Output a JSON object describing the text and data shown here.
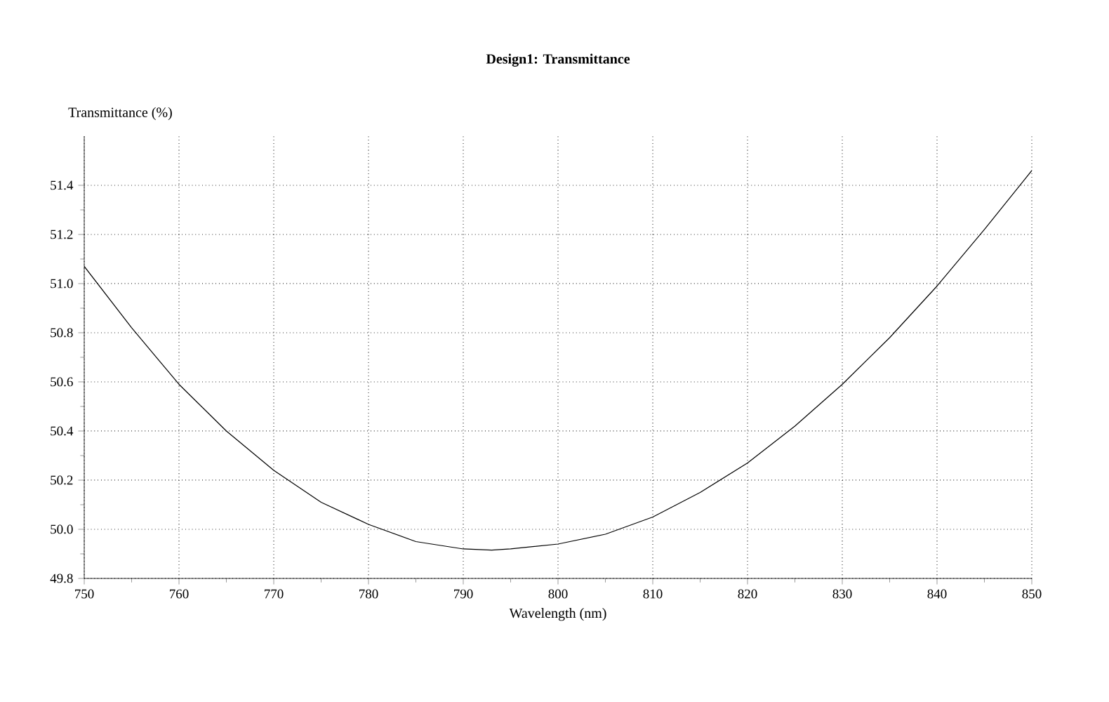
{
  "chart_data": {
    "type": "line",
    "title": "Design1: Transmittance",
    "xlabel": "Wavelength (nm)",
    "ylabel": "Transmittance (%)",
    "x": [
      750,
      755,
      760,
      765,
      770,
      775,
      780,
      785,
      790,
      793,
      795,
      800,
      805,
      810,
      815,
      820,
      825,
      830,
      835,
      840,
      845,
      850
    ],
    "series": [
      {
        "color": "#000000",
        "values": [
          51.07,
          50.82,
          50.59,
          50.4,
          50.24,
          50.11,
          50.02,
          49.95,
          49.92,
          49.915,
          49.92,
          49.94,
          49.98,
          50.05,
          50.15,
          50.27,
          50.42,
          50.59,
          50.78,
          50.99,
          51.22,
          51.46
        ]
      }
    ],
    "xlim": [
      750,
      850
    ],
    "ylim": [
      49.8,
      51.6
    ],
    "xticks": [
      750,
      760,
      770,
      780,
      790,
      800,
      810,
      820,
      830,
      840,
      850
    ],
    "yticks": [
      {
        "value": 49.8,
        "label": "49.8"
      },
      {
        "value": 50.0,
        "label": "50.0"
      },
      {
        "value": 50.2,
        "label": "50.2"
      },
      {
        "value": 50.4,
        "label": "50.4"
      },
      {
        "value": 50.6,
        "label": "50.6"
      },
      {
        "value": 50.8,
        "label": "50.8"
      },
      {
        "value": 51.0,
        "label": "51.0"
      },
      {
        "value": 51.2,
        "label": "51.2"
      },
      {
        "value": 51.4,
        "label": "51.4"
      }
    ],
    "grid": true,
    "marker": "none",
    "line_style": "solid"
  }
}
